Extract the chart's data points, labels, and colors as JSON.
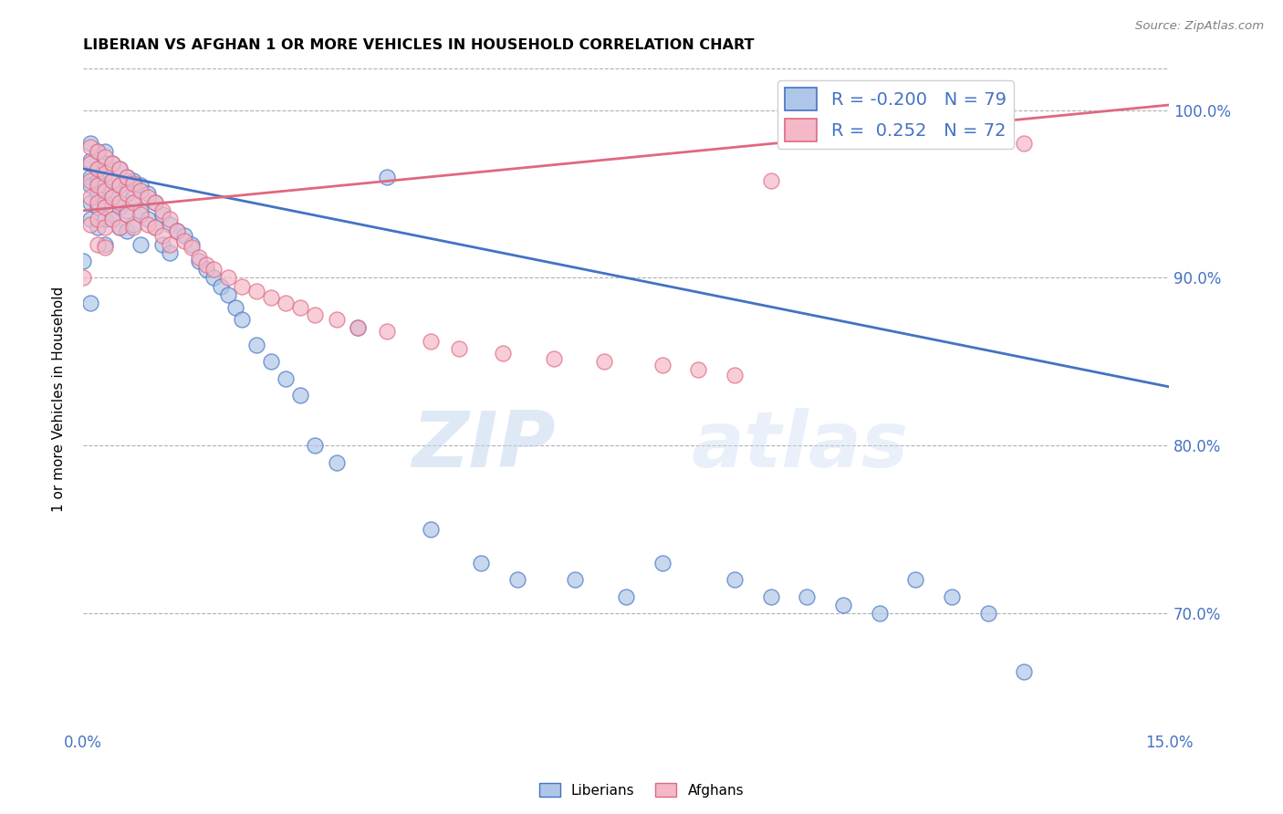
{
  "title": "LIBERIAN VS AFGHAN 1 OR MORE VEHICLES IN HOUSEHOLD CORRELATION CHART",
  "source": "Source: ZipAtlas.com",
  "ylabel": "1 or more Vehicles in Household",
  "liberian_color": "#aec6e8",
  "afghan_color": "#f4b8c8",
  "liberian_line_color": "#4472c4",
  "afghan_line_color": "#e06880",
  "watermark_zip": "ZIP",
  "watermark_atlas": "atlas",
  "xlim": [
    0.0,
    0.15
  ],
  "ylim": [
    0.63,
    1.025
  ],
  "ytick_vals": [
    0.7,
    0.8,
    0.9,
    1.0
  ],
  "ytick_labels": [
    "70.0%",
    "80.0%",
    "90.0%",
    "100.0%"
  ],
  "liberian_trend_x": [
    0.0,
    0.15
  ],
  "liberian_trend_y": [
    0.965,
    0.835
  ],
  "afghan_trend_x": [
    0.0,
    0.15
  ],
  "afghan_trend_y": [
    0.94,
    1.003
  ],
  "liberian_scatter_x": [
    0.0,
    0.001,
    0.001,
    0.001,
    0.001,
    0.001,
    0.001,
    0.001,
    0.002,
    0.002,
    0.002,
    0.002,
    0.002,
    0.002,
    0.003,
    0.003,
    0.003,
    0.003,
    0.003,
    0.003,
    0.004,
    0.004,
    0.004,
    0.004,
    0.005,
    0.005,
    0.005,
    0.005,
    0.006,
    0.006,
    0.006,
    0.006,
    0.007,
    0.007,
    0.007,
    0.008,
    0.008,
    0.008,
    0.009,
    0.009,
    0.01,
    0.01,
    0.011,
    0.011,
    0.012,
    0.012,
    0.013,
    0.014,
    0.015,
    0.016,
    0.017,
    0.018,
    0.019,
    0.02,
    0.021,
    0.022,
    0.024,
    0.026,
    0.028,
    0.03,
    0.032,
    0.035,
    0.038,
    0.042,
    0.048,
    0.055,
    0.06,
    0.068,
    0.075,
    0.08,
    0.09,
    0.095,
    0.1,
    0.105,
    0.11,
    0.115,
    0.12,
    0.125,
    0.13
  ],
  "liberian_scatter_y": [
    0.91,
    0.98,
    0.97,
    0.96,
    0.955,
    0.945,
    0.935,
    0.885,
    0.975,
    0.965,
    0.958,
    0.95,
    0.942,
    0.93,
    0.975,
    0.968,
    0.955,
    0.945,
    0.935,
    0.92,
    0.968,
    0.958,
    0.948,
    0.935,
    0.965,
    0.955,
    0.942,
    0.93,
    0.96,
    0.952,
    0.94,
    0.928,
    0.958,
    0.948,
    0.932,
    0.955,
    0.94,
    0.92,
    0.95,
    0.935,
    0.945,
    0.93,
    0.938,
    0.92,
    0.932,
    0.915,
    0.928,
    0.925,
    0.92,
    0.91,
    0.905,
    0.9,
    0.895,
    0.89,
    0.882,
    0.875,
    0.86,
    0.85,
    0.84,
    0.83,
    0.8,
    0.79,
    0.87,
    0.96,
    0.75,
    0.73,
    0.72,
    0.72,
    0.71,
    0.73,
    0.72,
    0.71,
    0.71,
    0.705,
    0.7,
    0.72,
    0.71,
    0.7,
    0.665
  ],
  "afghan_scatter_x": [
    0.0,
    0.001,
    0.001,
    0.001,
    0.001,
    0.001,
    0.002,
    0.002,
    0.002,
    0.002,
    0.002,
    0.002,
    0.003,
    0.003,
    0.003,
    0.003,
    0.003,
    0.003,
    0.004,
    0.004,
    0.004,
    0.004,
    0.005,
    0.005,
    0.005,
    0.005,
    0.006,
    0.006,
    0.006,
    0.007,
    0.007,
    0.007,
    0.008,
    0.008,
    0.009,
    0.009,
    0.01,
    0.01,
    0.011,
    0.011,
    0.012,
    0.012,
    0.013,
    0.014,
    0.015,
    0.016,
    0.017,
    0.018,
    0.02,
    0.022,
    0.024,
    0.026,
    0.028,
    0.03,
    0.032,
    0.035,
    0.038,
    0.042,
    0.048,
    0.052,
    0.058,
    0.065,
    0.072,
    0.08,
    0.085,
    0.09,
    0.095,
    0.1,
    0.11,
    0.12,
    0.125,
    0.13
  ],
  "afghan_scatter_y": [
    0.9,
    0.978,
    0.968,
    0.958,
    0.948,
    0.932,
    0.975,
    0.965,
    0.955,
    0.945,
    0.935,
    0.92,
    0.972,
    0.962,
    0.952,
    0.942,
    0.93,
    0.918,
    0.968,
    0.958,
    0.948,
    0.935,
    0.965,
    0.955,
    0.945,
    0.93,
    0.96,
    0.95,
    0.938,
    0.956,
    0.945,
    0.93,
    0.952,
    0.938,
    0.948,
    0.932,
    0.945,
    0.93,
    0.94,
    0.925,
    0.935,
    0.92,
    0.928,
    0.922,
    0.918,
    0.912,
    0.908,
    0.905,
    0.9,
    0.895,
    0.892,
    0.888,
    0.885,
    0.882,
    0.878,
    0.875,
    0.87,
    0.868,
    0.862,
    0.858,
    0.855,
    0.852,
    0.85,
    0.848,
    0.845,
    0.842,
    0.958,
    0.995,
    0.998,
    0.99,
    0.985,
    0.98
  ]
}
